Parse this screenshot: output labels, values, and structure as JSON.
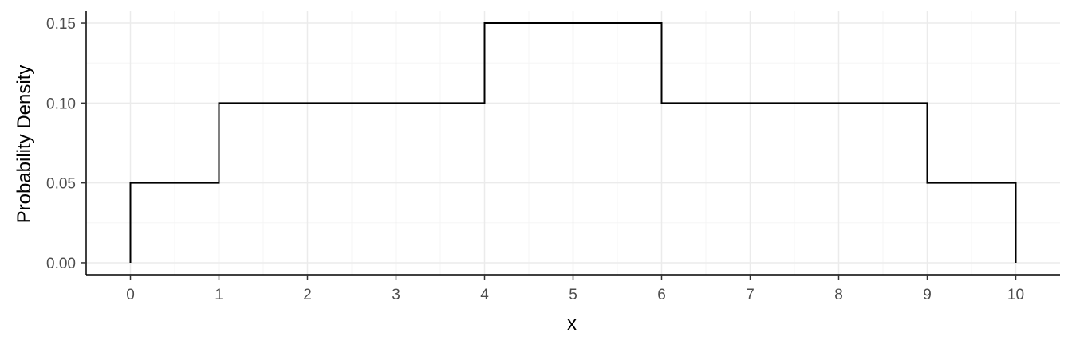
{
  "chart_data": {
    "type": "line",
    "step": true,
    "title": "",
    "xlabel": "x",
    "ylabel": "Probability Density",
    "xlim": [
      -0.5,
      10.5
    ],
    "ylim": [
      -0.0075,
      0.1575
    ],
    "x_ticks": [
      0,
      1,
      2,
      3,
      4,
      5,
      6,
      7,
      8,
      9,
      10
    ],
    "x_tick_labels": [
      "0",
      "1",
      "2",
      "3",
      "4",
      "5",
      "6",
      "7",
      "8",
      "9",
      "10"
    ],
    "y_ticks": [
      0,
      0.05,
      0.1,
      0.15
    ],
    "y_tick_labels": [
      "0.00",
      "0.05",
      "0.10",
      "0.15"
    ],
    "grid": true,
    "series": [
      {
        "x": [
          0,
          0,
          1,
          1,
          4,
          4,
          6,
          6,
          9,
          9,
          10,
          10
        ],
        "y": [
          0,
          0.05,
          0.05,
          0.1,
          0.1,
          0.15,
          0.15,
          0.1,
          0.1,
          0.05,
          0.05,
          0
        ],
        "color": "#000000"
      }
    ],
    "colors": {
      "grid_major": "#ebebeb",
      "grid_minor": "#f5f5f5",
      "axis_line": "#000000",
      "tick_label": "#4d4d4d"
    }
  }
}
